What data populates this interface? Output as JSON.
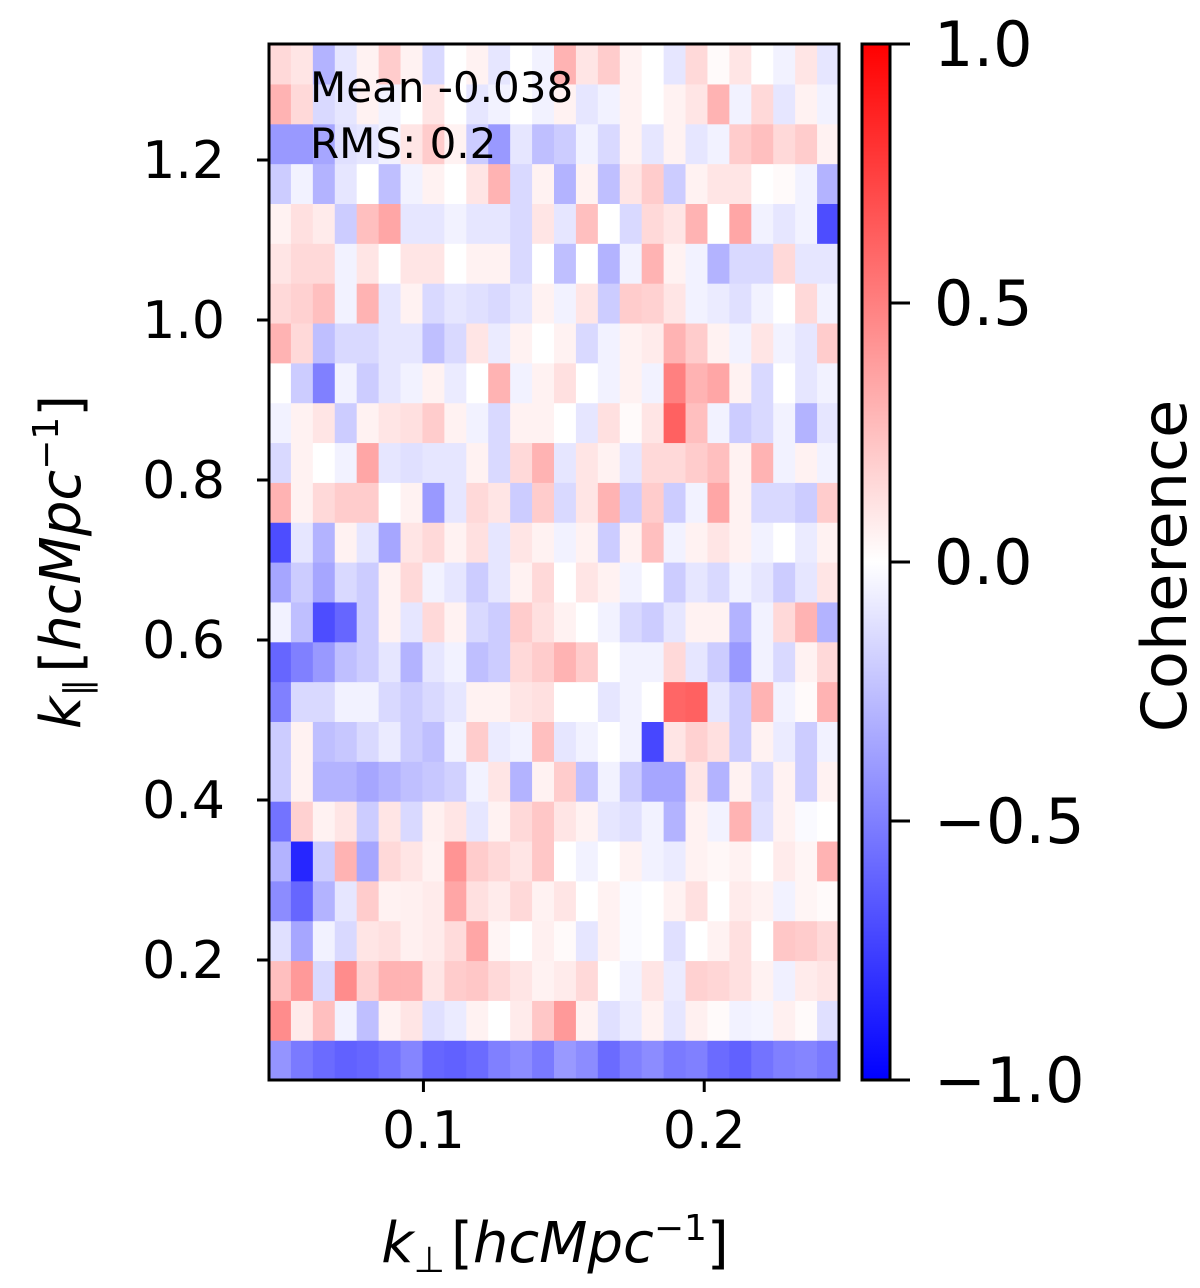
{
  "chart_data": {
    "type": "heatmap",
    "title": "",
    "colormap": "bwr",
    "colors": {
      "low": "#0000ff",
      "mid": "#ffffff",
      "high": "#ff0000"
    },
    "xlabel": {
      "base": "k",
      "sub": "⊥",
      "open": "[",
      "unit": "hcMpc",
      "sup": "−1",
      "close": "]"
    },
    "ylabel": {
      "base": "k",
      "sub": "∥",
      "open": "[",
      "unit": "hcMpc",
      "sup": "−1",
      "close": "]"
    },
    "xlim": [
      0.045,
      0.248
    ],
    "ylim": [
      0.05,
      1.345
    ],
    "xticks": [
      0.1,
      0.2
    ],
    "xtick_labels": [
      "0.1",
      "0.2"
    ],
    "yticks": [
      0.2,
      0.4,
      0.6,
      0.8,
      1.0,
      1.2
    ],
    "ytick_labels": [
      "0.2",
      "0.4",
      "0.6",
      "0.8",
      "1.0",
      "1.2"
    ],
    "colorbar": {
      "label": "Coherence",
      "vmin": -1.0,
      "vmax": 1.0,
      "ticks": [
        -1.0,
        -0.5,
        0.0,
        0.5,
        1.0
      ],
      "tick_labels": [
        "−1.0",
        "−0.5",
        "0.0",
        "0.5",
        "1.0"
      ]
    },
    "annotations": [
      {
        "text": "Mean -0.038"
      },
      {
        "text": "RMS: 0.2"
      }
    ],
    "grid_shape": [
      26,
      26
    ],
    "z": [
      [
        -0.42,
        -0.52,
        -0.58,
        -0.62,
        -0.6,
        -0.55,
        -0.48,
        -0.6,
        -0.62,
        -0.58,
        -0.5,
        -0.45,
        -0.52,
        -0.4,
        -0.45,
        -0.58,
        -0.5,
        -0.45,
        -0.52,
        -0.5,
        -0.58,
        -0.62,
        -0.55,
        -0.5,
        -0.48,
        -0.52
      ],
      [
        0.45,
        0.08,
        0.25,
        -0.05,
        -0.25,
        0.05,
        0.1,
        -0.12,
        -0.08,
        0.05,
        0.0,
        0.08,
        0.22,
        0.4,
        0.05,
        -0.12,
        -0.08,
        0.05,
        -0.1,
        0.06,
        0.02,
        -0.05,
        -0.04,
        0.06,
        0.02,
        -0.12
      ],
      [
        0.25,
        0.4,
        -0.15,
        0.45,
        0.18,
        0.3,
        0.3,
        0.1,
        0.2,
        0.22,
        0.15,
        0.1,
        0.05,
        0.08,
        0.15,
        0.0,
        -0.05,
        0.1,
        -0.08,
        0.18,
        0.16,
        0.12,
        0.05,
        -0.06,
        0.08,
        0.1
      ],
      [
        -0.12,
        -0.35,
        -0.05,
        -0.15,
        0.1,
        0.12,
        0.06,
        0.08,
        0.14,
        0.35,
        0.04,
        0.0,
        0.06,
        0.02,
        -0.1,
        0.05,
        -0.02,
        0.0,
        -0.12,
        0.0,
        0.05,
        0.12,
        0.0,
        0.22,
        0.2,
        0.15
      ],
      [
        -0.45,
        -0.6,
        -0.3,
        -0.1,
        0.2,
        0.05,
        0.06,
        0.08,
        0.35,
        0.12,
        0.08,
        0.15,
        0.05,
        0.1,
        0.0,
        0.05,
        -0.02,
        0.0,
        0.05,
        0.12,
        0.0,
        0.08,
        0.05,
        -0.05,
        0.04,
        0.02
      ],
      [
        -0.3,
        -0.85,
        -0.2,
        0.3,
        -0.35,
        0.15,
        0.1,
        0.05,
        0.42,
        0.2,
        0.15,
        0.1,
        0.22,
        0.0,
        -0.05,
        0.0,
        0.05,
        -0.05,
        -0.08,
        0.05,
        0.03,
        0.05,
        0.0,
        0.08,
        0.04,
        0.3
      ],
      [
        -0.55,
        0.18,
        0.05,
        0.1,
        -0.2,
        0.1,
        -0.15,
        0.06,
        0.1,
        -0.1,
        0.05,
        0.15,
        0.22,
        0.1,
        0.05,
        -0.1,
        -0.12,
        -0.05,
        -0.3,
        0.05,
        -0.05,
        0.3,
        -0.12,
        0.05,
        -0.02,
        0.0
      ],
      [
        -0.2,
        0.05,
        -0.3,
        -0.3,
        -0.35,
        -0.3,
        -0.25,
        -0.22,
        -0.18,
        -0.05,
        0.1,
        -0.3,
        0.05,
        0.2,
        -0.25,
        -0.05,
        -0.2,
        -0.35,
        -0.35,
        0.1,
        -0.3,
        0.05,
        -0.15,
        0.05,
        -0.2,
        0.05
      ],
      [
        -0.2,
        0.05,
        -0.25,
        -0.22,
        -0.15,
        -0.08,
        -0.2,
        -0.25,
        -0.05,
        0.2,
        -0.08,
        -0.05,
        0.25,
        -0.1,
        -0.05,
        0.0,
        -0.05,
        -0.72,
        0.1,
        0.18,
        0.12,
        -0.2,
        0.05,
        -0.08,
        -0.2,
        -0.05
      ],
      [
        -0.5,
        -0.15,
        -0.15,
        -0.05,
        -0.05,
        -0.15,
        -0.2,
        -0.15,
        -0.1,
        0.05,
        0.05,
        0.1,
        0.12,
        0.0,
        0.0,
        -0.1,
        -0.05,
        0.0,
        0.6,
        0.62,
        -0.1,
        -0.2,
        0.3,
        -0.05,
        0.02,
        0.3
      ],
      [
        -0.6,
        -0.5,
        -0.4,
        -0.25,
        -0.2,
        -0.1,
        -0.3,
        -0.1,
        -0.05,
        -0.25,
        -0.2,
        0.15,
        0.2,
        0.3,
        0.2,
        0.0,
        -0.05,
        -0.05,
        0.15,
        -0.1,
        -0.2,
        -0.4,
        -0.05,
        -0.15,
        0.05,
        0.15
      ],
      [
        -0.05,
        -0.25,
        -0.7,
        -0.6,
        -0.2,
        0.05,
        -0.1,
        0.15,
        0.05,
        -0.15,
        -0.2,
        0.2,
        0.12,
        0.05,
        0.0,
        -0.05,
        -0.15,
        -0.2,
        -0.1,
        0.05,
        0.05,
        -0.3,
        -0.05,
        0.15,
        0.3,
        -0.3
      ],
      [
        -0.35,
        -0.2,
        -0.35,
        -0.15,
        -0.2,
        0.05,
        0.15,
        -0.05,
        -0.1,
        -0.2,
        -0.1,
        0.05,
        0.15,
        0.0,
        0.1,
        0.05,
        -0.05,
        0.0,
        -0.2,
        -0.1,
        -0.15,
        -0.05,
        -0.1,
        -0.2,
        -0.1,
        0.1
      ],
      [
        -0.7,
        -0.1,
        -0.3,
        0.05,
        -0.1,
        -0.35,
        0.1,
        0.15,
        0.05,
        0.12,
        -0.1,
        0.1,
        0.05,
        -0.05,
        0.05,
        -0.2,
        0.05,
        0.25,
        -0.05,
        0.05,
        0.1,
        0.05,
        -0.05,
        0.0,
        -0.08,
        0.05
      ],
      [
        0.3,
        0.05,
        0.15,
        0.2,
        0.2,
        0.0,
        0.05,
        -0.4,
        -0.1,
        0.15,
        0.1,
        -0.2,
        0.2,
        -0.15,
        0.1,
        0.3,
        -0.2,
        0.2,
        -0.2,
        -0.05,
        0.35,
        0.05,
        -0.15,
        -0.15,
        -0.2,
        0.2
      ],
      [
        -0.15,
        0.05,
        0.0,
        -0.05,
        0.35,
        -0.1,
        -0.12,
        -0.1,
        -0.1,
        0.05,
        -0.15,
        0.15,
        0.3,
        -0.1,
        0.1,
        0.05,
        -0.1,
        0.15,
        0.15,
        0.2,
        0.25,
        0.05,
        0.3,
        -0.05,
        0.05,
        -0.05
      ],
      [
        -0.05,
        0.05,
        0.1,
        -0.2,
        0.05,
        0.1,
        0.12,
        0.2,
        0.05,
        -0.05,
        -0.15,
        0.05,
        0.05,
        0.0,
        -0.1,
        0.12,
        0.02,
        0.1,
        0.62,
        0.25,
        -0.05,
        -0.2,
        -0.15,
        -0.05,
        -0.3,
        -0.1
      ],
      [
        0.0,
        -0.2,
        -0.5,
        -0.05,
        -0.2,
        -0.1,
        -0.05,
        0.05,
        -0.08,
        0.0,
        0.3,
        -0.05,
        0.05,
        0.12,
        0.0,
        -0.05,
        0.05,
        -0.05,
        0.5,
        0.3,
        0.35,
        0.05,
        -0.15,
        0.0,
        -0.1,
        -0.05
      ],
      [
        0.3,
        0.15,
        -0.25,
        -0.15,
        -0.15,
        -0.1,
        -0.1,
        -0.25,
        -0.15,
        0.1,
        -0.08,
        0.05,
        0.0,
        0.05,
        -0.15,
        -0.05,
        0.05,
        0.08,
        0.3,
        0.2,
        0.05,
        -0.05,
        0.1,
        -0.05,
        -0.1,
        0.2
      ],
      [
        0.15,
        0.18,
        0.25,
        -0.05,
        0.3,
        -0.1,
        0.05,
        -0.15,
        -0.1,
        -0.12,
        -0.15,
        -0.1,
        0.05,
        -0.05,
        0.1,
        -0.2,
        0.2,
        0.18,
        0.1,
        -0.05,
        -0.08,
        -0.12,
        -0.05,
        0.0,
        0.15,
        -0.05
      ],
      [
        0.1,
        0.15,
        0.15,
        -0.05,
        0.1,
        0.0,
        0.1,
        0.1,
        0.0,
        0.05,
        0.05,
        -0.15,
        0.0,
        -0.25,
        0.0,
        -0.3,
        -0.05,
        0.3,
        0.05,
        -0.05,
        -0.3,
        -0.15,
        -0.15,
        0.15,
        -0.1,
        -0.1
      ],
      [
        0.05,
        0.12,
        0.08,
        -0.2,
        0.25,
        0.35,
        -0.1,
        -0.1,
        -0.05,
        -0.1,
        -0.1,
        -0.15,
        0.1,
        -0.1,
        0.25,
        0.0,
        -0.15,
        0.15,
        0.1,
        0.3,
        0.0,
        0.35,
        -0.05,
        -0.1,
        -0.05,
        -0.7
      ],
      [
        -0.2,
        -0.05,
        -0.3,
        -0.1,
        0.0,
        -0.25,
        -0.05,
        0.05,
        0.0,
        0.1,
        0.3,
        -0.15,
        0.05,
        -0.3,
        0.05,
        -0.25,
        0.1,
        0.2,
        -0.2,
        0.05,
        0.1,
        0.1,
        0.0,
        0.02,
        -0.05,
        -0.3
      ],
      [
        -0.4,
        -0.4,
        -0.35,
        -0.12,
        -0.1,
        -0.05,
        0.1,
        0.2,
        0.05,
        -0.2,
        -0.4,
        -0.1,
        -0.25,
        -0.2,
        -0.05,
        -0.15,
        0.05,
        -0.1,
        0.05,
        -0.1,
        -0.05,
        0.2,
        0.25,
        0.15,
        0.2,
        0.05
      ],
      [
        0.3,
        0.15,
        -0.15,
        -0.1,
        0.05,
        -0.05,
        0.0,
        0.1,
        0.0,
        -0.1,
        -0.05,
        0.0,
        -0.05,
        0.05,
        -0.1,
        -0.05,
        0.05,
        0.0,
        0.05,
        0.1,
        0.3,
        -0.05,
        0.15,
        -0.1,
        0.05,
        -0.05
      ],
      [
        0.15,
        0.1,
        -0.3,
        -0.1,
        0.05,
        0.2,
        0.05,
        -0.15,
        0.0,
        0.05,
        -0.1,
        0.0,
        -0.05,
        0.3,
        0.1,
        0.2,
        0.05,
        0.0,
        -0.1,
        0.15,
        0.02,
        0.1,
        0.0,
        -0.05,
        0.1,
        -0.1
      ]
    ]
  }
}
